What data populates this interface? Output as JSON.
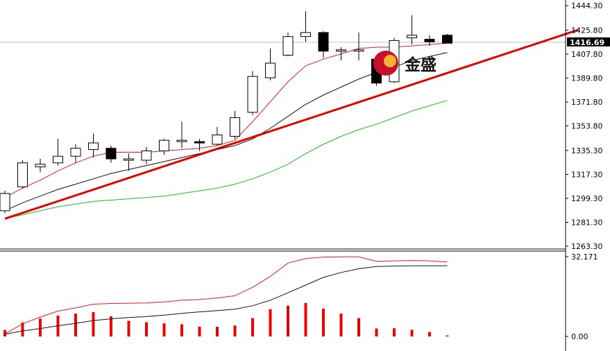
{
  "logo": {
    "text": "金盛",
    "colors": {
      "outer": "#c8102e",
      "inner": "#f2b233"
    }
  },
  "colors": {
    "up_fill": "#ffffff",
    "candle_stroke": "#000000",
    "down_fill": "#000000",
    "ma_fast": "#e31b1b",
    "ma_mid": "#111111",
    "ma_slow": "#22bb22",
    "trendline": "#e00000",
    "histogram": "#ee0000",
    "macd_line": "#111111",
    "signal_line": "#e31b1b",
    "axis": "#000000",
    "grid": "#bfbfbf"
  },
  "chart_data": [
    {
      "type": "candlestick",
      "title": "",
      "price_axis": {
        "ticks": [
          "1444.30",
          "1425.80",
          "1407.80",
          "1389.80",
          "1371.80",
          "1353.80",
          "1335.30",
          "1317.30",
          "1299.30",
          "1281.30",
          "1263.30"
        ],
        "ylim": [
          1263.3,
          1444.3
        ]
      },
      "current_price": "1416.69",
      "candles": [
        {
          "o": 1290,
          "h": 1305,
          "l": 1288,
          "c": 1303
        },
        {
          "o": 1308,
          "h": 1328,
          "l": 1307,
          "c": 1326
        },
        {
          "o": 1323,
          "h": 1329,
          "l": 1319,
          "c": 1325
        },
        {
          "o": 1326,
          "h": 1344,
          "l": 1324,
          "c": 1331
        },
        {
          "o": 1331,
          "h": 1340,
          "l": 1326,
          "c": 1337
        },
        {
          "o": 1336,
          "h": 1348,
          "l": 1330,
          "c": 1341
        },
        {
          "o": 1337,
          "h": 1339,
          "l": 1326,
          "c": 1329
        },
        {
          "o": 1328,
          "h": 1333,
          "l": 1320,
          "c": 1329
        },
        {
          "o": 1328,
          "h": 1338,
          "l": 1325,
          "c": 1335
        },
        {
          "o": 1335,
          "h": 1344,
          "l": 1332,
          "c": 1343
        },
        {
          "o": 1342,
          "h": 1357,
          "l": 1337,
          "c": 1343
        },
        {
          "o": 1342,
          "h": 1344,
          "l": 1335,
          "c": 1341
        },
        {
          "o": 1340,
          "h": 1353,
          "l": 1339,
          "c": 1347
        },
        {
          "o": 1346,
          "h": 1365,
          "l": 1344,
          "c": 1360
        },
        {
          "o": 1364,
          "h": 1395,
          "l": 1362,
          "c": 1391
        },
        {
          "o": 1390,
          "h": 1412,
          "l": 1388,
          "c": 1401
        },
        {
          "o": 1407,
          "h": 1424,
          "l": 1406,
          "c": 1421
        },
        {
          "o": 1421,
          "h": 1440,
          "l": 1417,
          "c": 1424
        },
        {
          "o": 1424,
          "h": 1425,
          "l": 1405,
          "c": 1410
        },
        {
          "o": 1411,
          "h": 1413,
          "l": 1403,
          "c": 1411
        },
        {
          "o": 1411,
          "h": 1424,
          "l": 1403,
          "c": 1411
        },
        {
          "o": 1404,
          "h": 1406,
          "l": 1384,
          "c": 1386
        },
        {
          "o": 1387,
          "h": 1420,
          "l": 1386,
          "c": 1418
        },
        {
          "o": 1420,
          "h": 1437,
          "l": 1415,
          "c": 1422
        },
        {
          "o": 1419,
          "h": 1422,
          "l": 1414,
          "c": 1417
        },
        {
          "o": 1422,
          "h": 1423,
          "l": 1417,
          "c": 1416
        }
      ],
      "ma_fast": [
        1300,
        1307,
        1313,
        1320,
        1326,
        1331,
        1334,
        1334,
        1334,
        1335,
        1336,
        1337,
        1339,
        1343,
        1357,
        1372,
        1387,
        1399,
        1404,
        1408,
        1412,
        1413,
        1413,
        1414,
        1415,
        1416
      ],
      "ma_mid": [
        1290,
        1296,
        1301,
        1306,
        1310,
        1314,
        1318,
        1321,
        1324,
        1327,
        1330,
        1333,
        1336,
        1339,
        1344,
        1352,
        1361,
        1370,
        1377,
        1383,
        1389,
        1394,
        1398,
        1403,
        1406,
        1409
      ],
      "ma_slow": [
        1284,
        1287,
        1290,
        1293,
        1295,
        1297,
        1298,
        1299,
        1300,
        1301,
        1303,
        1305,
        1307,
        1310,
        1314,
        1319,
        1325,
        1333,
        1340,
        1346,
        1351,
        1355,
        1360,
        1365,
        1369,
        1373
      ],
      "trendline": {
        "start": [
          0,
          1284
        ],
        "end": [
          32.4,
          1426
        ]
      }
    },
    {
      "type": "bar+line",
      "title": "",
      "indicator_axis": {
        "ticks": [
          "32.171",
          "0.00"
        ],
        "ylim": [
          0,
          32.171
        ]
      },
      "histogram": [
        2.6,
        5.6,
        7.2,
        8.4,
        9.2,
        9.8,
        8.1,
        6.3,
        5.7,
        5.3,
        4.9,
        3.9,
        3.9,
        4.4,
        7.4,
        11.0,
        12.4,
        13.5,
        11.2,
        9.2,
        7.4,
        3.2,
        3.3,
        2.7,
        1.8,
        0.4
      ],
      "macd_line": [
        0.9,
        2.2,
        3.2,
        4.3,
        5.3,
        6.4,
        7.1,
        7.6,
        8.0,
        8.6,
        9.3,
        9.9,
        10.4,
        11.0,
        12.4,
        14.6,
        17.6,
        20.7,
        23.8,
        25.8,
        27.3,
        28.2,
        28.4,
        28.5,
        28.5,
        28.5
      ],
      "signal_line": [
        1.0,
        5.1,
        7.8,
        10.2,
        11.5,
        13.0,
        13.3,
        13.4,
        13.5,
        13.9,
        14.6,
        14.9,
        15.5,
        16.4,
        19.8,
        24.2,
        29.6,
        31.4,
        32.0,
        32.1,
        32.1,
        30.3,
        30.5,
        30.6,
        30.5,
        30.0
      ]
    }
  ]
}
